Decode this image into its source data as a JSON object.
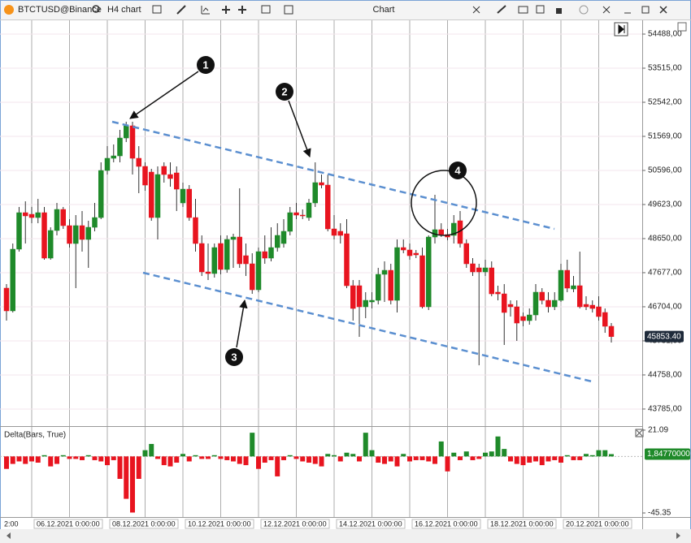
{
  "toolbar": {
    "symbol": "BTCTUSD@Binance",
    "timeframe": "H4 chart",
    "title": "Chart"
  },
  "chart_data": [
    {
      "type": "candlestick",
      "categories": [
        "2:00",
        null,
        null,
        null,
        "06.12.2021 0:00:00",
        null,
        null,
        null,
        null,
        null,
        null,
        null,
        null,
        null,
        null,
        null,
        "08.12.2021 0:00:00",
        null,
        null,
        null,
        null,
        null,
        null,
        null,
        null,
        null,
        null,
        null,
        "10.12.2021 0:00:00",
        null,
        null,
        null,
        null,
        null,
        null,
        null,
        null,
        null,
        null,
        null,
        "12.12.2021 0:00:00",
        null,
        null,
        null,
        null,
        null,
        null,
        null,
        null,
        null,
        null,
        null,
        "14.12.2021 0:00:00",
        null,
        null,
        null,
        null,
        null,
        null,
        null,
        null,
        null,
        null,
        null,
        "16.12.2021 0:00:00",
        null,
        null,
        null,
        null,
        null,
        null,
        null,
        null,
        null,
        null,
        null,
        "18.12.2021 0:00:00",
        null,
        null,
        null,
        null,
        null,
        null,
        null,
        null,
        null,
        null,
        null,
        "20.12.2021 0:00:00",
        null,
        null,
        null,
        null,
        null,
        null,
        null,
        null
      ],
      "open": [
        47236,
        46587,
        48348,
        49390,
        49344,
        49251,
        49390,
        48093,
        48881,
        49483,
        49020,
        48510,
        49020,
        48626,
        48973,
        49251,
        50595,
        50943,
        51012,
        51522,
        51870,
        50943,
        50711,
        50549,
        49251,
        50711,
        50479,
        50526,
        49668,
        50062,
        49251,
        48510,
        47699,
        47653,
        48510,
        47769,
        48626,
        48695,
        48162,
        47931,
        47189,
        48278,
        48093,
        48394,
        48510,
        48858,
        49390,
        49321,
        49251,
        49668,
        50248,
        50178,
        48927,
        48858,
        48788,
        47305,
        47305,
        46703,
        46842,
        46888,
        47630,
        47745,
        46888,
        48394,
        48325,
        48232,
        48162,
        46703,
        48695,
        48904,
        48765,
        48742,
        49159,
        48510,
        47931,
        47815,
        47699,
        47815,
        47120,
        47073,
        46772,
        46703,
        46425,
        46309,
        46471,
        47120,
        46888,
        46703,
        46888,
        47745,
        47212,
        47305,
        46772,
        46749,
        46703,
        46541,
        46147
      ],
      "high": [
        47351,
        48510,
        49553,
        49715,
        49553,
        49784,
        49553,
        48973,
        49668,
        49553,
        49205,
        49321,
        49437,
        49159,
        49668,
        50827,
        51290,
        51337,
        51754,
        51985,
        51985,
        51290,
        50827,
        50642,
        50711,
        50827,
        50827,
        50711,
        50248,
        50178,
        49784,
        48742,
        48510,
        48510,
        48742,
        48742,
        48788,
        50086,
        48510,
        48232,
        48394,
        48742,
        48973,
        49089,
        49205,
        49553,
        49668,
        49483,
        49784,
        50827,
        50479,
        50479,
        49321,
        49089,
        49205,
        47467,
        47467,
        47120,
        47120,
        47815,
        48000,
        47931,
        48626,
        48626,
        48510,
        48325,
        48394,
        48742,
        49900,
        49089,
        48927,
        49321,
        49437,
        48626,
        48093,
        47931,
        48047,
        48000,
        47305,
        47351,
        46888,
        46888,
        46541,
        46656,
        47351,
        47236,
        47120,
        47120,
        47931,
        48047,
        47583,
        48278,
        47004,
        46888,
        47004,
        46656,
        46239
      ],
      "low": [
        46309,
        46541,
        48278,
        48510,
        49089,
        49089,
        48047,
        48047,
        48742,
        48927,
        48394,
        47236,
        48278,
        47815,
        48858,
        49205,
        50479,
        50827,
        50827,
        51406,
        50479,
        49947,
        50016,
        49159,
        48626,
        50248,
        50132,
        49437,
        49553,
        49159,
        48278,
        47583,
        47467,
        47537,
        47630,
        47676,
        47815,
        47815,
        47583,
        47073,
        47120,
        47931,
        48000,
        48278,
        48394,
        48742,
        49205,
        49205,
        49159,
        49553,
        50086,
        48858,
        48626,
        48510,
        47236,
        46309,
        45845,
        46378,
        46656,
        46772,
        46842,
        46772,
        46541,
        48232,
        48047,
        48093,
        46656,
        46610,
        48510,
        48695,
        48603,
        48510,
        48394,
        47815,
        47583,
        45034,
        47583,
        47004,
        46888,
        45614,
        46425,
        45730,
        46147,
        46193,
        46309,
        46772,
        46541,
        46610,
        46842,
        47120,
        47120,
        46656,
        46610,
        46541,
        46309,
        45961,
        45684
      ],
      "close": [
        46587,
        48348,
        49390,
        49298,
        49251,
        49390,
        48093,
        48881,
        49483,
        49020,
        48510,
        49020,
        48626,
        48973,
        49251,
        50595,
        50943,
        51012,
        51522,
        51870,
        50943,
        50711,
        50178,
        49251,
        50479,
        50479,
        50364,
        50062,
        50062,
        49251,
        48510,
        47699,
        47653,
        48394,
        47769,
        48626,
        48695,
        47931,
        47931,
        47189,
        48278,
        48093,
        48394,
        48742,
        48858,
        49390,
        49321,
        49298,
        49668,
        50248,
        50178,
        48927,
        48742,
        48742,
        47305,
        46656,
        46703,
        46888,
        46888,
        47630,
        47745,
        46888,
        48394,
        48325,
        48162,
        48186,
        46703,
        48695,
        48904,
        48765,
        48695,
        49089,
        48510,
        47931,
        47699,
        47699,
        47815,
        47073,
        47073,
        46541,
        46703,
        46239,
        46309,
        46471,
        47120,
        46888,
        46703,
        46888,
        47745,
        47236,
        47305,
        46703,
        46703,
        46656,
        46425,
        46147,
        45853.4
      ],
      "up_color": "#1f8a2a",
      "down_color": "#e8141f",
      "ylim": [
        43297,
        54882
      ],
      "yticks": [
        {
          "value": 54488,
          "label": "54488,00"
        },
        {
          "value": 53515,
          "label": "53515,00"
        },
        {
          "value": 52542,
          "label": "52542,00"
        },
        {
          "value": 51569,
          "label": "51569,00"
        },
        {
          "value": 50596,
          "label": "50596,00"
        },
        {
          "value": 49623,
          "label": "49623,00"
        },
        {
          "value": 48650,
          "label": "48650,00"
        },
        {
          "value": 47677,
          "label": "47677,00"
        },
        {
          "value": 46704,
          "label": "46704,00"
        },
        {
          "value": 45731,
          "label": "45731,00"
        },
        {
          "value": 44758,
          "label": "44758,00"
        },
        {
          "value": 43785,
          "label": "43785,00"
        }
      ],
      "last_price_label": "45853.40",
      "annotations": [
        "1",
        "2",
        "3",
        "4"
      ]
    },
    {
      "type": "bar",
      "title": "Delta(Bars, True)",
      "values": [
        -10,
        -6,
        -4,
        -6,
        -4,
        -5,
        1,
        -8,
        -6,
        1,
        -2,
        -2,
        -3,
        1,
        -3,
        -4,
        -7,
        -3,
        -18,
        -34,
        -45,
        -18,
        5,
        10,
        -2,
        -7,
        -8,
        -5,
        2,
        -4,
        1,
        -2,
        -2,
        1,
        -2,
        -3,
        -4,
        -6,
        -7,
        19,
        -10,
        -5,
        -3,
        -16,
        -3,
        1,
        -2,
        -4,
        -5,
        -6,
        -8,
        2,
        1,
        -4,
        3,
        2,
        -4,
        19,
        5,
        -5,
        -6,
        -4,
        -8,
        2,
        -4,
        -3,
        -3,
        -4,
        -6,
        12,
        -12,
        3,
        -3,
        4,
        -3,
        -2,
        3,
        4,
        16,
        6,
        -4,
        -6,
        -7,
        -5,
        -4,
        -7,
        -4,
        -3,
        -5,
        1,
        -3,
        -3,
        2,
        1,
        5,
        5,
        1.8477
      ],
      "up_color": "#1f8a2a",
      "down_color": "#e8141f",
      "ylim": [
        -48.6,
        23.0
      ],
      "yticks": [
        21.09,
        -45.35
      ],
      "last_value_label": "1,84770000"
    }
  ]
}
